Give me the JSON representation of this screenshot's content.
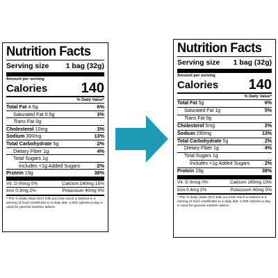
{
  "left": {
    "title": "Nutrition Facts",
    "serving_label": "Serving size",
    "serving_value": "1 bag (32g)",
    "amount_per_serving": "Amount per serving",
    "calories_label": "Calories",
    "calories_value": "140",
    "dv_header": "% Daily Value*",
    "total_fat_label": "Total Fat",
    "total_fat_amount": "4.5g",
    "total_fat_dv": "6%",
    "sat_fat_label": "Saturated Fat 0.5g",
    "sat_fat_dv": "3%",
    "trans_fat_label": "Trans",
    "trans_fat_rest": " Fat 0g",
    "cholesterol_label": "Cholesterol",
    "cholesterol_amount": "10mg",
    "cholesterol_dv": "3%",
    "sodium_label": "Sodium",
    "sodium_amount": "300mg",
    "sodium_dv": "13%",
    "carb_label": "Total Carbohydrate",
    "carb_amount": "5g",
    "carb_dv": "2%",
    "fiber_label": "Dietary Fiber 1g",
    "fiber_dv": "4%",
    "sugars_label": "Total Sugars 1g",
    "added_sugars_label": "Includes <1g Added Sugars",
    "added_sugars_dv": "2%",
    "protein_label": "Protein",
    "protein_amount": "19g",
    "protein_dv": "38%",
    "vit_d": "Vit. D 0mcg 0%",
    "calcium": "Calcium 160mg 15%",
    "iron": "Iron 0.3mg 2%",
    "potassium": "Potassium 40mg 0%",
    "footnote": "* The % Daily Value (DV) tells you how much a nutrient in a serving of food contributes to a daily diet. 2,000 calories a day is used for general nutrition advice."
  },
  "right": {
    "title": "Nutrition Facts",
    "serving_label": "Serving size",
    "serving_value": "1 bag (32g)",
    "amount_per_serving": "Amount per serving",
    "calories_label": "Calories",
    "calories_value": "140",
    "dv_header": "% Daily Value*",
    "total_fat_label": "Total Fat",
    "total_fat_amount": "5g",
    "total_fat_dv": "6%",
    "sat_fat_label": "Saturated Fat 1g",
    "sat_fat_dv": "5%",
    "trans_fat_label": "Trans",
    "trans_fat_rest": " Fat 0g",
    "cholesterol_label": "Cholesterol",
    "cholesterol_amount": "5mg",
    "cholesterol_dv": "2%",
    "sodium_label": "Sodium",
    "sodium_amount": "290mg",
    "sodium_dv": "13%",
    "carb_label": "Total Carbohydrate",
    "carb_amount": "5g",
    "carb_dv": "2%",
    "fiber_label": "Dietary Fiber 1g",
    "fiber_dv": "4%",
    "sugars_label": "Total Sugars 1g",
    "added_sugars_label": "Includes <1g Added Sugars",
    "added_sugars_dv": "2%",
    "protein_label": "Protein",
    "protein_amount": "19g",
    "protein_dv": "38%",
    "vit_d": "Vit. D 0mcg 0%",
    "calcium": "Calcium 160mg 10%",
    "iron": "Iron 0.4mg 2%",
    "potassium": "Potassium 40mg 0%",
    "footnote": "* The % Daily Value (DV) tells you how much a nutrient in a serving of food contributes to a daily diet. 2,000 calories a day is used for general nutrition advice."
  },
  "arrow": {
    "icon": "arrow-right-icon",
    "color": "#1f9bb8"
  }
}
